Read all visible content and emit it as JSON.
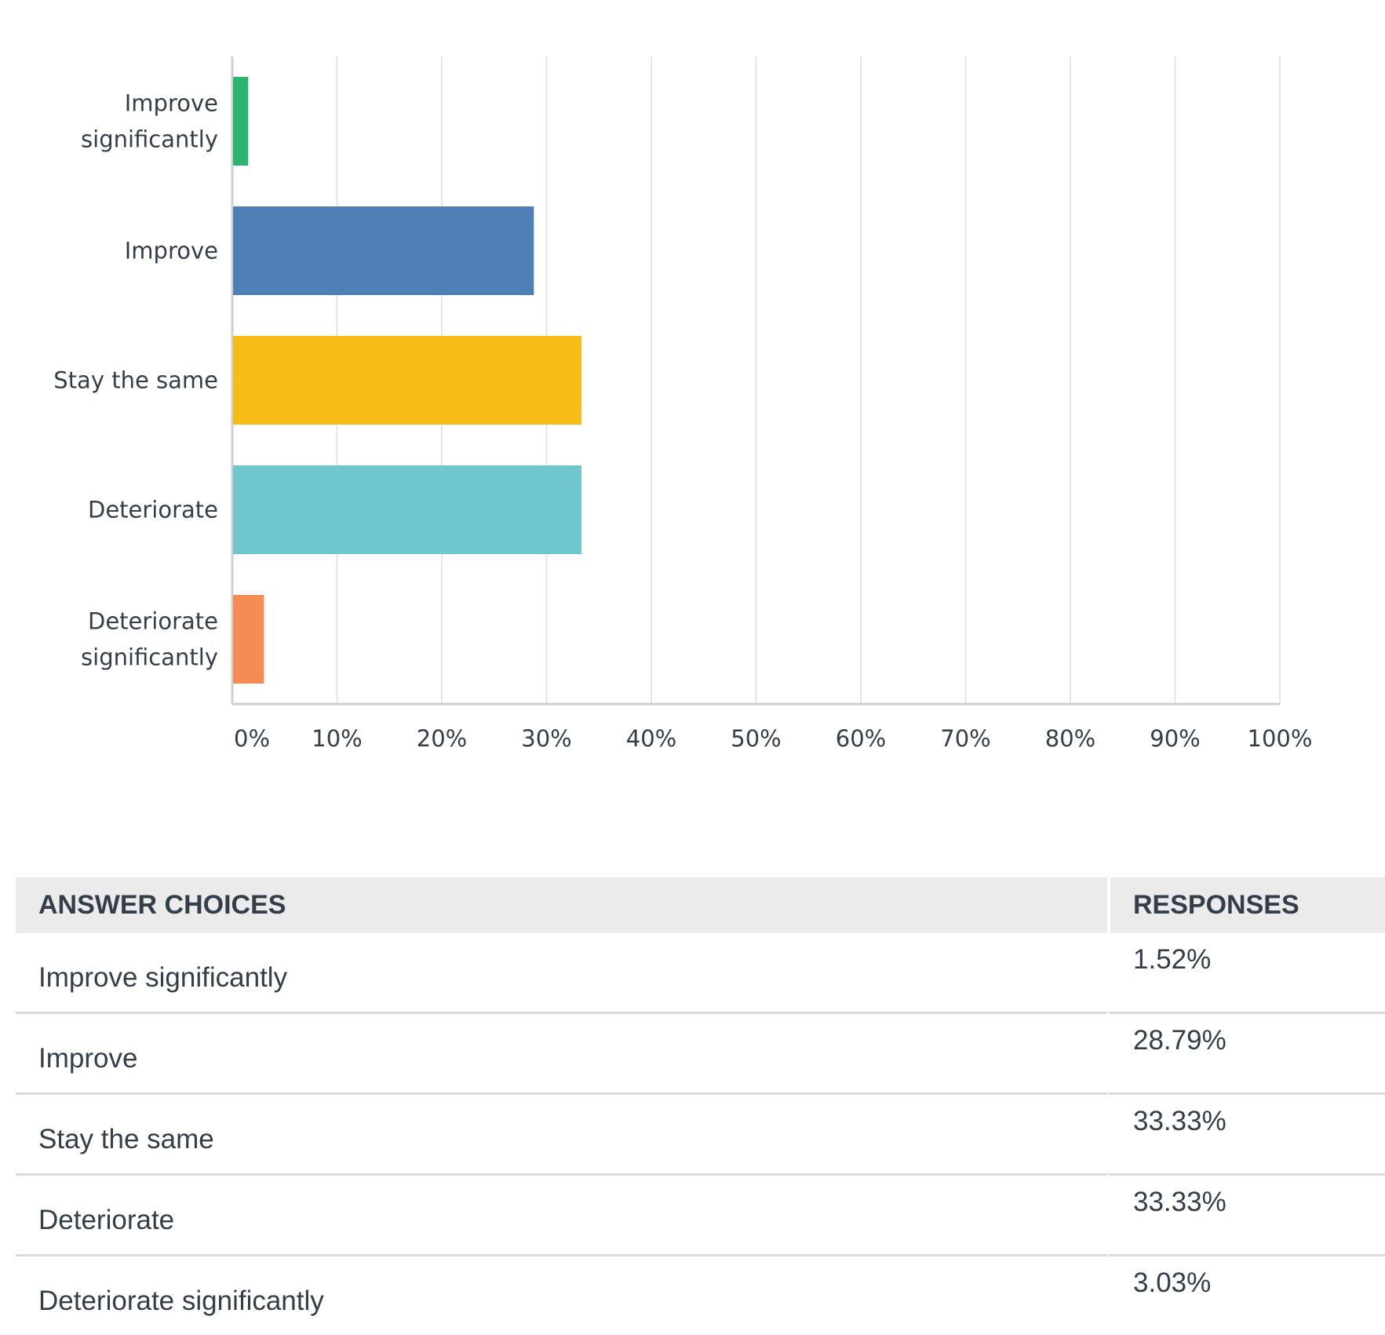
{
  "chart_data": {
    "type": "bar",
    "orientation": "horizontal",
    "categories": [
      "Improve significantly",
      "Improve",
      "Stay the same",
      "Deteriorate",
      "Deteriorate significantly"
    ],
    "category_label_lines": [
      [
        "Improve",
        "significantly"
      ],
      [
        "Improve"
      ],
      [
        "Stay the same"
      ],
      [
        "Deteriorate"
      ],
      [
        "Deteriorate",
        "significantly"
      ]
    ],
    "values": [
      1.52,
      28.79,
      33.33,
      33.33,
      3.03
    ],
    "colors": [
      "#2db56f",
      "#507fb6",
      "#f7bd16",
      "#6fc6cc",
      "#f68b55"
    ],
    "xlim": [
      0,
      100
    ],
    "x_ticks": [
      "0%",
      "10%",
      "20%",
      "30%",
      "40%",
      "50%",
      "60%",
      "70%",
      "80%",
      "90%",
      "100%"
    ],
    "grid": true,
    "title": "",
    "xlabel": "",
    "ylabel": ""
  },
  "table": {
    "headers": [
      "ANSWER CHOICES",
      "RESPONSES"
    ],
    "rows": [
      {
        "choice": "Improve significantly",
        "response": "1.52%"
      },
      {
        "choice": "Improve",
        "response": "28.79%"
      },
      {
        "choice": "Stay the same",
        "response": "33.33%"
      },
      {
        "choice": "Deteriorate",
        "response": "33.33%"
      },
      {
        "choice": "Deteriorate significantly",
        "response": "3.03%"
      }
    ]
  }
}
